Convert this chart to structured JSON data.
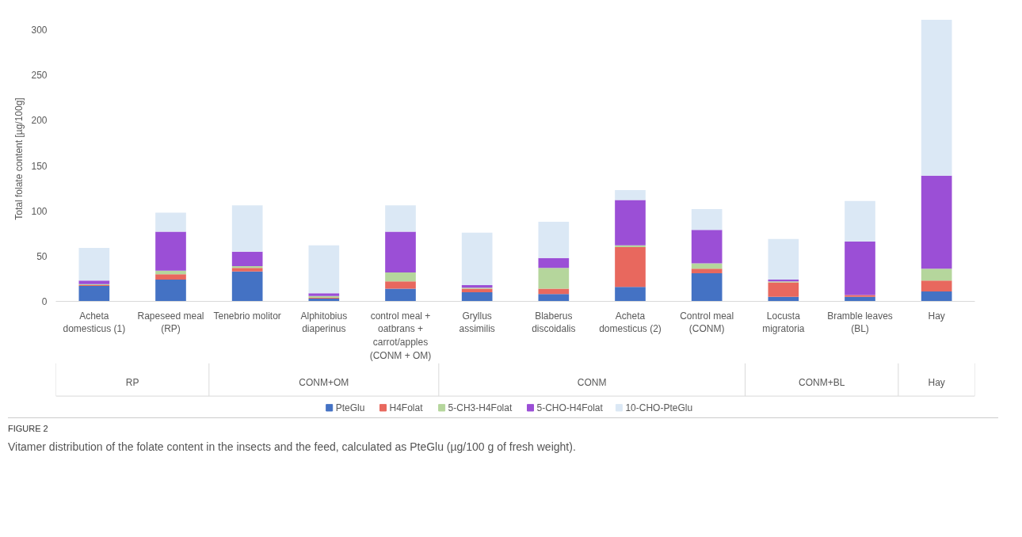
{
  "chart_data": {
    "type": "bar",
    "stacked": true,
    "ylabel": "Total folate content [µg/100g]",
    "categories": [
      "Acheta domesticus (1)",
      "Rapeseed meal (RP)",
      "Tenebrio molitor",
      "Alphitobius diaperinus",
      "control meal + oatbrans + carrot/apples (CONM + OM)",
      "Gryllus assimilis",
      "Blaberus discoidalis",
      "Acheta domesticus (2)",
      "Control meal (CONM)",
      "Locusta migratoria",
      "Bramble leaves (BL)",
      "Hay"
    ],
    "series": [
      {
        "name": "PteGlu",
        "color": "#4472c4",
        "values": [
          17,
          24,
          33,
          3,
          14,
          10,
          8,
          16,
          31,
          5,
          5,
          11
        ]
      },
      {
        "name": "H4Folat",
        "color": "#e8685e",
        "values": [
          1,
          6,
          4,
          1,
          8,
          4,
          6,
          44,
          5,
          16,
          2,
          12
        ]
      },
      {
        "name": "5-CH3-H4Folat",
        "color": "#b5d69c",
        "values": [
          1,
          4,
          2,
          2,
          10,
          1,
          23,
          2,
          6,
          1,
          0,
          13
        ]
      },
      {
        "name": "5-CHO-H4Folat",
        "color": "#9b4fd6",
        "values": [
          4,
          43,
          16,
          3,
          45,
          3,
          11,
          50,
          37,
          2,
          59,
          103
        ]
      },
      {
        "name": "10-CHO-PteGlu",
        "color": "#dbe8f5",
        "values": [
          36,
          21,
          51,
          53,
          29,
          58,
          40,
          11,
          23,
          45,
          45,
          172
        ]
      }
    ],
    "ylim": [
      0,
      315
    ],
    "yticks": [
      0,
      50,
      100,
      150,
      200,
      250,
      300
    ],
    "grid": false,
    "legend": "bottom",
    "annotations": [
      "RP",
      "CONM+OM",
      "CONM",
      "CONM+BL",
      "Hay",
      "FIGURE 2",
      "Vitamer distribution of the folate content in the insects and the feed, calculated as PteGlu (µg/100 g of fresh weight)."
    ]
  }
}
